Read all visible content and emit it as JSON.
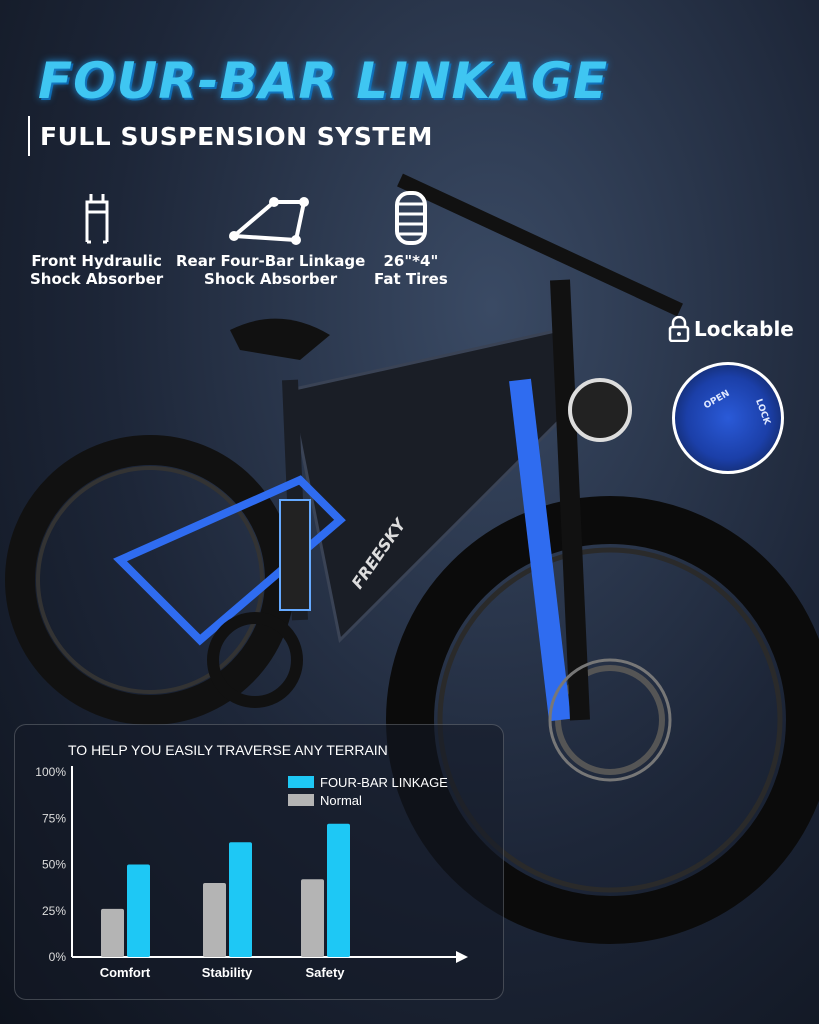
{
  "header": {
    "title": "FOUR-BAR LINKAGE",
    "subtitle": "FULL SUSPENSION SYSTEM"
  },
  "features": [
    {
      "icon": "fork-icon",
      "line1": "Front Hydraulic",
      "line2": "Shock Absorber"
    },
    {
      "icon": "linkage-icon",
      "line1": "Rear Four-Bar Linkage",
      "line2": "Shock Absorber"
    },
    {
      "icon": "tire-icon",
      "line1": "26\"*4\"",
      "line2": "Fat Tires"
    }
  ],
  "lock": {
    "label": "Lockable",
    "open": "OPEN",
    "lock": "LOCK",
    "icon": "padlock-icon"
  },
  "brand": "FREESKY",
  "colors": {
    "accent": "#1ec8f5",
    "normal": "#b4b4b4",
    "title": "#3fc6f2"
  },
  "chart_data": {
    "type": "bar",
    "title": "TO HELP YOU EASILY TRAVERSE ANY TERRAIN",
    "categories": [
      "Comfort",
      "Stability",
      "Safety"
    ],
    "series": [
      {
        "name": "Normal",
        "values": [
          26,
          40,
          42
        ],
        "color": "#b4b4b4"
      },
      {
        "name": "FOUR-BAR LINKAGE",
        "values": [
          50,
          62,
          72
        ],
        "color": "#1ec8f5"
      }
    ],
    "yticks": [
      "0%",
      "25%",
      "50%",
      "75%",
      "100%"
    ],
    "ylim": [
      0,
      100
    ],
    "legend": "top-right",
    "grid": false
  }
}
